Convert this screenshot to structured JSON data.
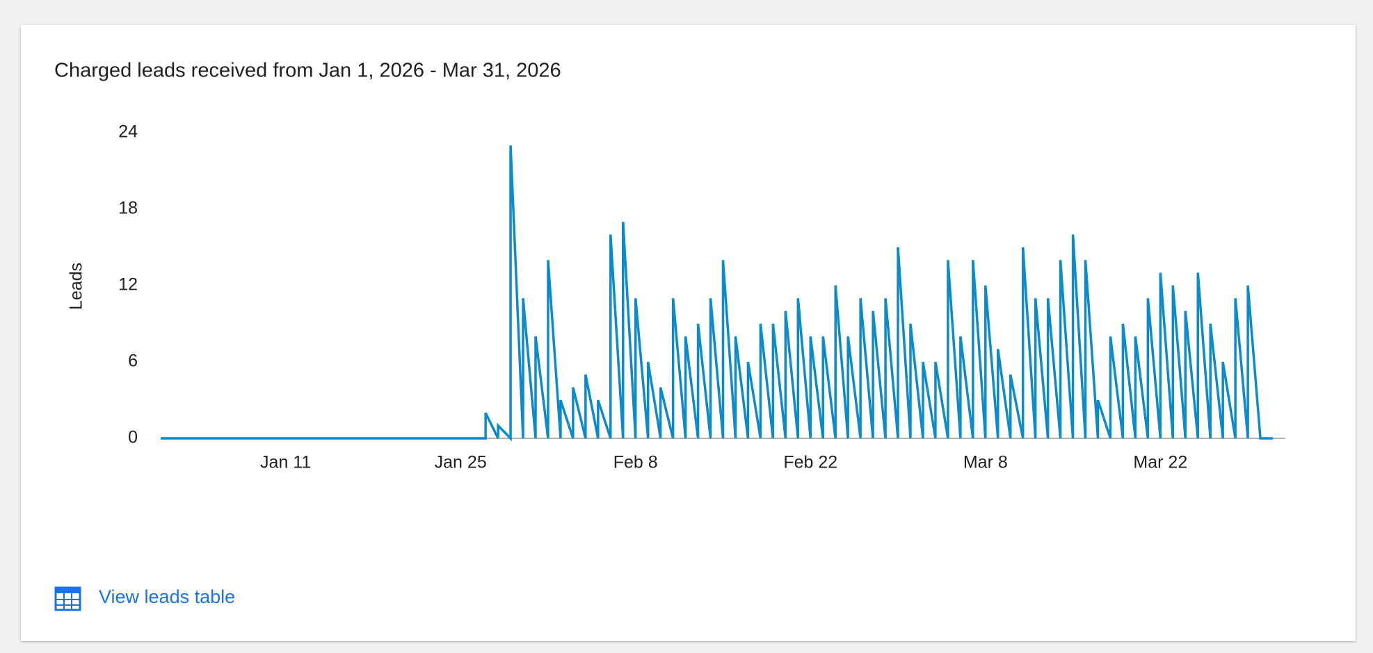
{
  "chart_data": {
    "type": "line",
    "title": "Charged leads received from Jan 1, 2026 - Mar 31, 2026",
    "y_label": "Leads",
    "color": "#0b8bcb",
    "x": [
      1,
      27,
      27,
      28,
      28,
      29,
      29,
      30,
      30,
      31,
      31,
      32,
      32,
      33,
      33,
      34,
      34,
      35,
      35,
      36,
      36,
      37,
      37,
      38,
      38,
      39,
      39,
      40,
      40,
      41,
      41,
      42,
      42,
      43,
      43,
      44,
      44,
      45,
      45,
      46,
      46,
      47,
      47,
      48,
      48,
      49,
      49,
      50,
      50,
      51,
      51,
      52,
      52,
      53,
      53,
      54,
      54,
      55,
      55,
      56,
      56,
      57,
      57,
      58,
      58,
      59,
      59,
      60,
      60,
      61,
      61,
      62,
      62,
      63,
      63,
      64,
      64,
      65,
      65,
      66,
      66,
      67,
      67,
      68,
      68,
      69,
      69,
      70,
      70,
      71,
      71,
      72,
      72,
      73,
      73,
      74,
      74,
      75,
      75,
      76,
      76,
      77,
      77,
      78,
      78,
      79,
      79,
      80,
      80,
      81,
      81,
      82,
      82,
      83,
      83,
      84,
      84,
      85,
      85,
      86,
      86,
      87,
      87,
      88,
      88,
      89,
      90
    ],
    "values": [
      0,
      0,
      2,
      0,
      1,
      0,
      23,
      0,
      11,
      0,
      8,
      0,
      14,
      0,
      3,
      0,
      4,
      0,
      5,
      0,
      3,
      0,
      16,
      0,
      17,
      0,
      11,
      0,
      6,
      0,
      4,
      0,
      11,
      0,
      8,
      0,
      9,
      0,
      11,
      0,
      14,
      0,
      8,
      0,
      6,
      0,
      9,
      0,
      9,
      0,
      10,
      0,
      11,
      0,
      8,
      0,
      8,
      0,
      12,
      0,
      8,
      0,
      11,
      0,
      10,
      0,
      11,
      0,
      15,
      0,
      9,
      0,
      6,
      0,
      6,
      0,
      14,
      0,
      8,
      0,
      14,
      0,
      12,
      0,
      7,
      0,
      5,
      0,
      15,
      0,
      11,
      0,
      11,
      0,
      14,
      0,
      16,
      0,
      14,
      0,
      3,
      0,
      8,
      0,
      9,
      0,
      8,
      0,
      11,
      0,
      13,
      0,
      12,
      0,
      10,
      0,
      13,
      0,
      9,
      0,
      6,
      0,
      11,
      0,
      12,
      0,
      0
    ],
    "xlim": [
      1,
      91
    ],
    "xticks": [
      {
        "value": 11,
        "label": "Jan 11"
      },
      {
        "value": 25,
        "label": "Jan 25"
      },
      {
        "value": 39,
        "label": "Feb 8"
      },
      {
        "value": 53,
        "label": "Feb 22"
      },
      {
        "value": 67,
        "label": "Mar 8"
      },
      {
        "value": 81,
        "label": "Mar 22"
      }
    ],
    "ylim": [
      0,
      24
    ],
    "yticks": [
      0,
      6,
      12,
      18,
      24
    ],
    "grid": false
  },
  "link": {
    "label": "View leads table"
  }
}
